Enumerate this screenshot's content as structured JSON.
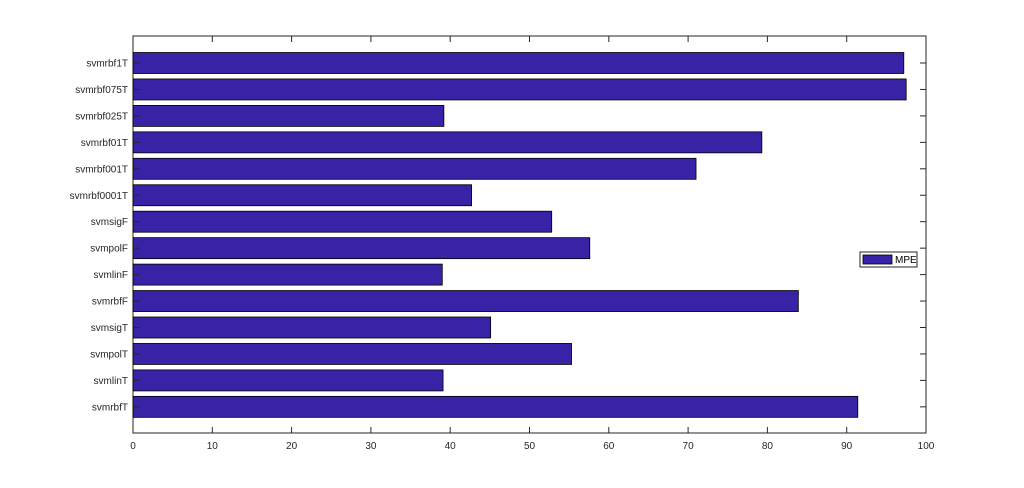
{
  "chart_data": {
    "type": "bar",
    "orientation": "horizontal",
    "categories": [
      "svmrbf1T",
      "svmrbf075T",
      "svmrbf025T",
      "svmrbf01T",
      "svmrbf001T",
      "svmrbf0001T",
      "svmsigF",
      "svmpolF",
      "svmlinF",
      "svmrbfF",
      "svmsigT",
      "svmpolT",
      "svmlinT",
      "svmrbfT"
    ],
    "series": [
      {
        "name": "MPE",
        "values": [
          97.2,
          97.5,
          39.2,
          79.3,
          71.0,
          42.7,
          52.8,
          57.6,
          39.0,
          83.9,
          45.1,
          55.3,
          39.1,
          91.4
        ]
      }
    ],
    "xlim": [
      0,
      100
    ],
    "xticks": [
      0,
      10,
      20,
      30,
      40,
      50,
      60,
      70,
      80,
      90,
      100
    ],
    "title": "",
    "xlabel": "",
    "ylabel": "",
    "grid": false,
    "legend_position": "right",
    "colors": {
      "bar_fill": "#3a22a6",
      "bar_edge": "#000000",
      "axis": "#262626",
      "background": "#ffffff"
    }
  }
}
